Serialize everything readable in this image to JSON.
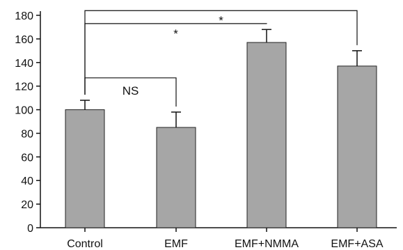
{
  "chart_data": {
    "type": "bar",
    "categories": [
      "Control",
      "EMF",
      "EMF+NMMA",
      "EMF+ASA"
    ],
    "values": [
      100,
      85,
      157,
      137
    ],
    "errors": [
      8,
      13,
      11,
      13
    ],
    "ylim": [
      0,
      180
    ],
    "yticks": [
      0,
      20,
      40,
      60,
      80,
      100,
      120,
      140,
      160,
      180
    ],
    "grid": false,
    "bar_color": "#a6a6a6",
    "annotations": [
      {
        "from": "Control",
        "to": "EMF",
        "label": "NS",
        "level": 127
      },
      {
        "from": "Control",
        "to": "EMF+NMMA",
        "label": "*",
        "level": 173
      },
      {
        "from": "Control",
        "to": "EMF+ASA",
        "label": "*",
        "level": 184
      }
    ]
  }
}
